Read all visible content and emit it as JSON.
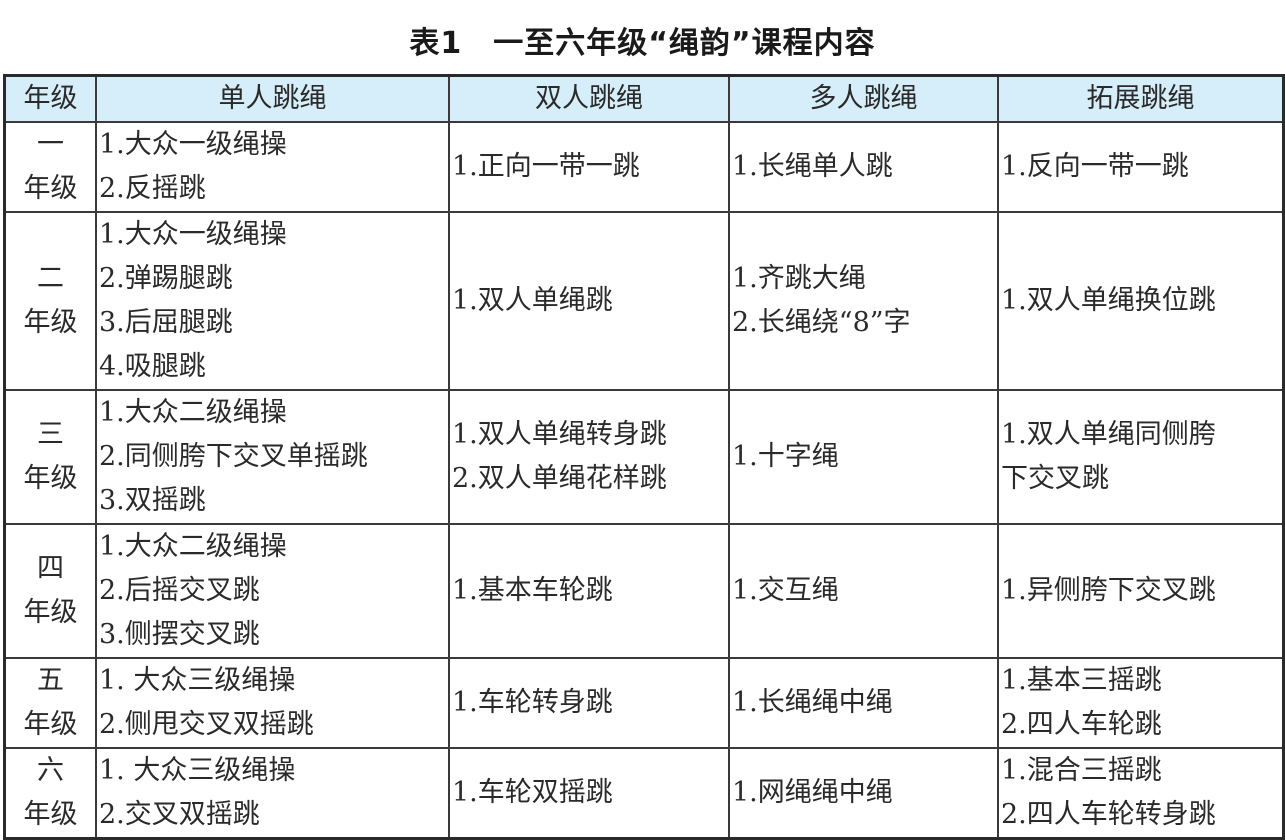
{
  "title": "表1　一至六年级“绳韵”课程内容",
  "headers": [
    "年级",
    "单人跳绳",
    "双人跳绳",
    "多人跳绳",
    "拓展跳绳"
  ],
  "rows": [
    {
      "grade": [
        "一",
        "年级"
      ],
      "single": [
        "1.大众一级绳操",
        "2.反摇跳"
      ],
      "double": [
        "1.正向一带一跳"
      ],
      "multi": [
        "1.长绳单人跳"
      ],
      "extend": [
        "1.反向一带一跳"
      ]
    },
    {
      "grade": [
        "二",
        "年级"
      ],
      "single": [
        "1.大众一级绳操",
        "2.弹踢腿跳",
        "3.后屈腿跳",
        "4.吸腿跳"
      ],
      "double": [
        "1.双人单绳跳"
      ],
      "multi": [
        "1.齐跳大绳",
        "2.长绳绕“8”字"
      ],
      "extend": [
        "1.双人单绳换位跳"
      ]
    },
    {
      "grade": [
        "三",
        "年级"
      ],
      "single": [
        "1.大众二级绳操",
        "2.同侧胯下交叉单摇跳",
        "3.双摇跳"
      ],
      "double": [
        "1.双人单绳转身跳",
        "2.双人单绳花样跳"
      ],
      "multi": [
        "1.十字绳"
      ],
      "extend": [
        "1.双人单绳同侧胯",
        "下交叉跳"
      ]
    },
    {
      "grade": [
        "四",
        "年级"
      ],
      "single": [
        "1.大众二级绳操",
        "2.后摇交叉跳",
        "3.侧摆交叉跳"
      ],
      "double": [
        "1.基本车轮跳"
      ],
      "multi": [
        "1.交互绳"
      ],
      "extend": [
        "1.异侧胯下交叉跳"
      ]
    },
    {
      "grade": [
        "五",
        "年级"
      ],
      "single": [
        "1. 大众三级绳操",
        "2.侧甩交叉双摇跳"
      ],
      "double": [
        "1.车轮转身跳"
      ],
      "multi": [
        "1.长绳绳中绳"
      ],
      "extend": [
        "1.基本三摇跳",
        "2.四人车轮跳"
      ]
    },
    {
      "grade": [
        "六",
        "年级"
      ],
      "single": [
        "1. 大众三级绳操",
        "2.交叉双摇跳"
      ],
      "double": [
        "1.车轮双摇跳"
      ],
      "multi": [
        "1.网绳绳中绳"
      ],
      "extend": [
        "1.混合三摇跳",
        "2.四人车轮转身跳"
      ]
    }
  ],
  "colors": {
    "header_bg": "#d6eef9",
    "border": "#3a3a3a"
  }
}
